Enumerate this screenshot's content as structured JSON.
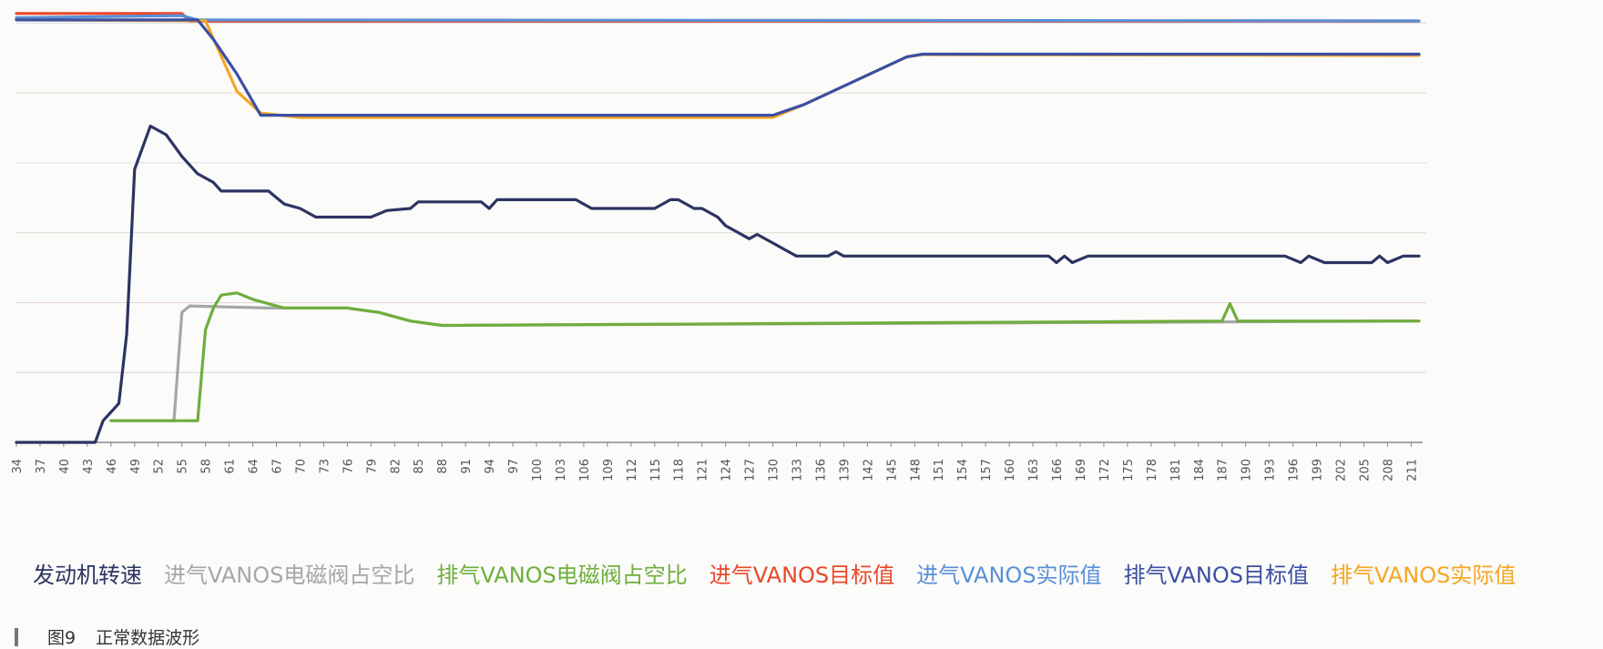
{
  "chart_data": {
    "type": "line",
    "title": "",
    "xlabel": "",
    "ylabel": "",
    "grid": true,
    "legend_position": "bottom",
    "x_start": 34,
    "x_end": 212,
    "ylim": [
      0,
      100
    ],
    "tick_labels": [
      "34",
      "37",
      "40",
      "43",
      "46",
      "49",
      "52",
      "55",
      "58",
      "61",
      "64",
      "67",
      "70",
      "73",
      "76",
      "79",
      "82",
      "85",
      "88",
      "91",
      "94",
      "97",
      "100",
      "103",
      "106",
      "109",
      "112",
      "115",
      "118",
      "121",
      "124",
      "127",
      "130",
      "133",
      "136",
      "139",
      "142",
      "145",
      "148",
      "151",
      "154",
      "157",
      "160",
      "163",
      "166",
      "169",
      "172",
      "175",
      "178",
      "181",
      "184",
      "187",
      "190",
      "193",
      "196",
      "199",
      "202",
      "205",
      "208",
      "211"
    ],
    "series": [
      {
        "name": "进气VANOS目标值",
        "color": "#e8492a",
        "points": [
          [
            34,
            99
          ],
          [
            55,
            99
          ],
          [
            56,
            97.2
          ],
          [
            212,
            97.2
          ]
        ]
      },
      {
        "name": "进气VANOS实际值",
        "color": "#5b8fd6",
        "points": [
          [
            34,
            98
          ],
          [
            55,
            98.5
          ],
          [
            57,
            97.5
          ],
          [
            212,
            97.3
          ]
        ]
      },
      {
        "name": "排气VANOS实际值",
        "color": "#f5a623",
        "points": [
          [
            34,
            97.5
          ],
          [
            58,
            97.3
          ],
          [
            62,
            81
          ],
          [
            65,
            76
          ],
          [
            70,
            75
          ],
          [
            130,
            75
          ],
          [
            134,
            78
          ],
          [
            147,
            89
          ],
          [
            149,
            89.5
          ],
          [
            212,
            89.3
          ]
        ]
      },
      {
        "name": "排气VANOS目标值",
        "color": "#3c4fa3",
        "points": [
          [
            34,
            97.5
          ],
          [
            57,
            97.5
          ],
          [
            59,
            93
          ],
          [
            62,
            85
          ],
          [
            65,
            75.5
          ],
          [
            130,
            75.5
          ],
          [
            134,
            78
          ],
          [
            147,
            89
          ],
          [
            149,
            89.6
          ],
          [
            212,
            89.6
          ]
        ]
      },
      {
        "name": "发动机转速",
        "color": "#2c3462",
        "points": [
          [
            34,
            0
          ],
          [
            44,
            0
          ],
          [
            45,
            5
          ],
          [
            47,
            9
          ],
          [
            48,
            25
          ],
          [
            49,
            63
          ],
          [
            51,
            73
          ],
          [
            53,
            71
          ],
          [
            55,
            66
          ],
          [
            57,
            62
          ],
          [
            59,
            60
          ],
          [
            60,
            58
          ],
          [
            66,
            58
          ],
          [
            67,
            56.5
          ],
          [
            68,
            55
          ],
          [
            70,
            54
          ],
          [
            72,
            52
          ],
          [
            79,
            52
          ],
          [
            81,
            53.5
          ],
          [
            84,
            54
          ],
          [
            85,
            55.5
          ],
          [
            93,
            55.5
          ],
          [
            94,
            54
          ],
          [
            95,
            56
          ],
          [
            105,
            56
          ],
          [
            107,
            54
          ],
          [
            115,
            54
          ],
          [
            117,
            56
          ],
          [
            118,
            56
          ],
          [
            120,
            54
          ],
          [
            121,
            54
          ],
          [
            123,
            52
          ],
          [
            124,
            50
          ],
          [
            126,
            48
          ],
          [
            127,
            47
          ],
          [
            128,
            48
          ],
          [
            130,
            46
          ],
          [
            132,
            44
          ],
          [
            133,
            43
          ],
          [
            137,
            43
          ],
          [
            138,
            44
          ],
          [
            139,
            43
          ],
          [
            165,
            43
          ],
          [
            166,
            41.5
          ],
          [
            167,
            43
          ],
          [
            168,
            41.5
          ],
          [
            170,
            43
          ],
          [
            195,
            43
          ],
          [
            197,
            41.5
          ],
          [
            198,
            43
          ],
          [
            200,
            41.5
          ],
          [
            206,
            41.5
          ],
          [
            207,
            43
          ],
          [
            208,
            41.5
          ],
          [
            210,
            43
          ],
          [
            212,
            43
          ]
        ]
      },
      {
        "name": "进气VANOS电磁阀占空比",
        "color": "#a6a6a6",
        "points": [
          [
            34,
            null
          ],
          [
            45,
            null
          ],
          [
            46,
            5
          ],
          [
            54,
            5
          ],
          [
            55,
            30
          ],
          [
            56,
            31.5
          ],
          [
            66,
            31
          ],
          [
            76,
            31
          ],
          [
            80,
            30
          ],
          [
            84,
            28
          ],
          [
            88,
            27
          ],
          [
            212,
            28
          ]
        ]
      },
      {
        "name": "排气VANOS电磁阀占空比",
        "color": "#6fae3c",
        "points": [
          [
            34,
            null
          ],
          [
            45,
            null
          ],
          [
            46,
            5
          ],
          [
            57,
            5
          ],
          [
            58,
            26
          ],
          [
            59,
            31
          ],
          [
            60,
            34
          ],
          [
            62,
            34.5
          ],
          [
            64,
            33
          ],
          [
            66,
            32
          ],
          [
            68,
            31
          ],
          [
            76,
            31
          ],
          [
            80,
            30
          ],
          [
            84,
            28
          ],
          [
            88,
            27
          ],
          [
            187,
            28
          ],
          [
            188,
            32
          ],
          [
            189,
            28
          ],
          [
            212,
            28
          ]
        ]
      }
    ]
  },
  "legend": [
    {
      "label": "发动机转速",
      "color": "#2c3462"
    },
    {
      "label": "进气VANOS电磁阀占空比",
      "color": "#a6a6a6"
    },
    {
      "label": "排气VANOS电磁阀占空比",
      "color": "#6fae3c"
    },
    {
      "label": "进气VANOS目标值",
      "color": "#e8492a"
    },
    {
      "label": "进气VANOS实际值",
      "color": "#5b8fd6"
    },
    {
      "label": "排气VANOS目标值",
      "color": "#3c4fa3"
    },
    {
      "label": "排气VANOS实际值",
      "color": "#f5a623"
    }
  ],
  "caption": {
    "label": "图9",
    "text": "正常数据波形"
  }
}
